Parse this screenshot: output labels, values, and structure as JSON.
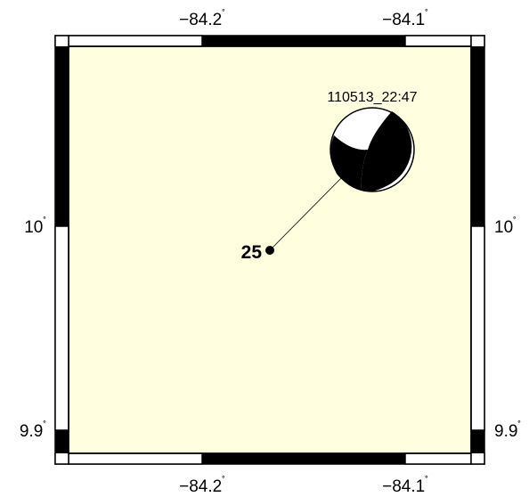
{
  "map": {
    "background_color": "#ffffe0",
    "x_ticks": [
      {
        "label": "−84.2",
        "deg": "˚"
      },
      {
        "label": "−84.1",
        "deg": "˚"
      }
    ],
    "y_ticks": [
      {
        "label": "10",
        "deg": "˚"
      },
      {
        "label": "9.9",
        "deg": "˚"
      }
    ]
  },
  "event": {
    "title": "110513_22:47",
    "depth_label": "25",
    "beachball_colors": {
      "compression": "#000000",
      "dilatation": "#ffffff"
    }
  }
}
